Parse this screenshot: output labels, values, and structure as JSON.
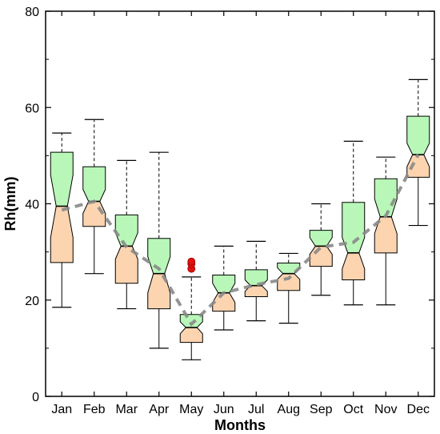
{
  "chart_data": {
    "type": "boxplot",
    "title": "",
    "xlabel": "Months",
    "ylabel": "Rh(mm)",
    "ylim": [
      0,
      80
    ],
    "yticks": [
      0,
      20,
      40,
      60,
      80
    ],
    "grid": false,
    "box_style": "notched",
    "colors": {
      "upper_box": "#b8f7b8",
      "lower_box": "#fcd4b0",
      "median_line": "#888888",
      "outlier": "#e01010"
    },
    "categories": [
      "Jan",
      "Feb",
      "Mar",
      "Apr",
      "May",
      "Jun",
      "Jul",
      "Aug",
      "Sep",
      "Oct",
      "Nov",
      "Dec"
    ],
    "boxes": [
      {
        "month": "Jan",
        "whisker_low": 18.5,
        "q1": 27.8,
        "median": 39.5,
        "q3": 50.7,
        "whisker_high": 54.7,
        "notch_low": 33.0,
        "notch_high": 46.0,
        "outliers": []
      },
      {
        "month": "Feb",
        "whisker_low": 25.5,
        "q1": 35.3,
        "median": 40.5,
        "q3": 47.7,
        "whisker_high": 57.5,
        "notch_low": 38.0,
        "notch_high": 43.0,
        "outliers": []
      },
      {
        "month": "Mar",
        "whisker_low": 18.2,
        "q1": 23.5,
        "median": 31.2,
        "q3": 37.7,
        "whisker_high": 49.0,
        "notch_low": 28.5,
        "notch_high": 34.0,
        "outliers": []
      },
      {
        "month": "Apr",
        "whisker_low": 10.0,
        "q1": 18.2,
        "median": 25.5,
        "q3": 32.8,
        "whisker_high": 50.7,
        "notch_low": 21.5,
        "notch_high": 29.0,
        "outliers": []
      },
      {
        "month": "May",
        "whisker_low": 7.6,
        "q1": 11.2,
        "median": 14.3,
        "q3": 17.0,
        "whisker_high": 24.8,
        "notch_low": 13.0,
        "notch_high": 15.5,
        "outliers": [
          26.5,
          27.5,
          28.0
        ]
      },
      {
        "month": "Jun",
        "whisker_low": 13.8,
        "q1": 17.7,
        "median": 21.5,
        "q3": 25.2,
        "whisker_high": 31.2,
        "notch_low": 19.5,
        "notch_high": 23.5,
        "outliers": []
      },
      {
        "month": "Jul",
        "whisker_low": 15.7,
        "q1": 20.7,
        "median": 23.0,
        "q3": 26.3,
        "whisker_high": 32.2,
        "notch_low": 21.8,
        "notch_high": 24.2,
        "outliers": []
      },
      {
        "month": "Aug",
        "whisker_low": 15.2,
        "q1": 22.0,
        "median": 25.5,
        "q3": 27.7,
        "whisker_high": 29.7,
        "notch_low": 24.3,
        "notch_high": 26.7,
        "outliers": []
      },
      {
        "month": "Sep",
        "whisker_low": 21.0,
        "q1": 27.0,
        "median": 31.2,
        "q3": 34.5,
        "whisker_high": 40.0,
        "notch_low": 29.5,
        "notch_high": 33.0,
        "outliers": []
      },
      {
        "month": "Oct",
        "whisker_low": 19.0,
        "q1": 24.2,
        "median": 29.8,
        "q3": 40.3,
        "whisker_high": 53.0,
        "notch_low": 26.5,
        "notch_high": 33.0,
        "outliers": []
      },
      {
        "month": "Nov",
        "whisker_low": 19.0,
        "q1": 29.8,
        "median": 37.3,
        "q3": 45.2,
        "whisker_high": 49.7,
        "notch_low": 33.8,
        "notch_high": 41.0,
        "outliers": []
      },
      {
        "month": "Dec",
        "whisker_low": 35.5,
        "q1": 45.5,
        "median": 50.2,
        "q3": 58.2,
        "whisker_high": 65.8,
        "notch_low": 47.7,
        "notch_high": 52.6,
        "outliers": []
      }
    ],
    "trend_line": {
      "style": "dashed",
      "values": [
        38.7,
        40.5,
        31.0,
        26.5,
        15.0,
        21.5,
        23.2,
        24.5,
        31.0,
        32.0,
        37.5,
        50.2
      ]
    }
  }
}
